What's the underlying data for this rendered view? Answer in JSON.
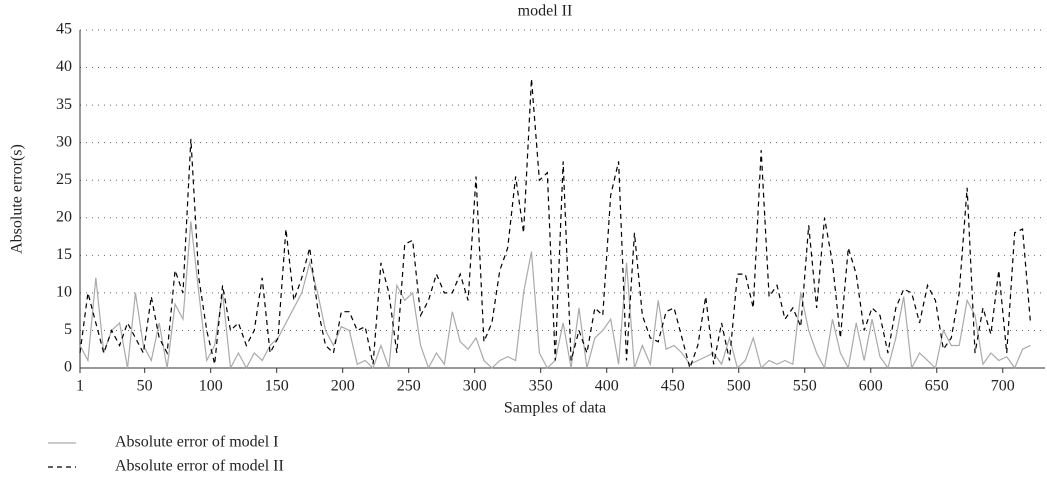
{
  "chart_data": {
    "type": "line",
    "title": "model II",
    "xlabel": "Samples of data",
    "ylabel": "Absolute error(s)",
    "x": [
      1,
      7,
      13,
      19,
      25,
      31,
      37,
      43,
      49,
      55,
      61,
      67,
      73,
      79,
      85,
      91,
      97,
      103,
      109,
      115,
      121,
      127,
      133,
      139,
      145,
      151,
      157,
      163,
      169,
      175,
      181,
      187,
      193,
      199,
      205,
      211,
      217,
      223,
      229,
      235,
      241,
      247,
      253,
      259,
      265,
      271,
      277,
      283,
      289,
      295,
      301,
      307,
      313,
      319,
      325,
      331,
      337,
      343,
      349,
      355,
      361,
      367,
      373,
      379,
      385,
      391,
      397,
      403,
      409,
      415,
      421,
      427,
      433,
      439,
      445,
      451,
      457,
      463,
      469,
      475,
      481,
      487,
      493,
      499,
      505,
      511,
      517,
      523,
      529,
      535,
      541,
      547,
      553,
      559,
      565,
      571,
      577,
      583,
      589,
      595,
      601,
      607,
      613,
      619,
      625,
      631,
      637,
      643,
      649,
      655,
      661,
      667,
      673,
      679,
      685,
      691,
      697,
      703,
      709,
      715,
      721
    ],
    "series": [
      {
        "name": "Absolute error of model I",
        "color": "#aaaaaa",
        "line_style": "solid",
        "values": [
          3,
          1,
          12,
          2,
          5,
          6,
          0,
          10,
          3,
          1,
          6,
          0,
          8.5,
          6.5,
          19.5,
          10,
          1,
          3,
          10,
          0,
          2,
          0,
          2,
          1,
          3,
          4,
          6,
          8,
          10,
          14,
          10,
          5,
          3,
          5.5,
          5,
          0.5,
          1,
          0,
          3,
          0,
          11,
          9,
          10,
          3,
          0,
          2,
          0.5,
          7.5,
          3.5,
          2.5,
          4,
          1,
          0,
          1,
          1.5,
          1,
          10,
          15.5,
          2,
          0,
          1,
          6,
          0,
          8,
          0,
          4,
          5,
          6.5,
          0.5,
          14,
          0,
          3,
          0.5,
          9,
          2.5,
          3,
          2,
          0.5,
          1,
          1.5,
          2,
          0.5,
          4,
          0,
          1,
          4,
          0,
          1,
          0.5,
          1,
          0.5,
          10,
          5,
          2,
          0,
          6.5,
          2,
          0,
          6,
          1,
          6.5,
          1.5,
          0,
          4,
          9.5,
          0,
          2,
          1,
          0,
          5,
          3,
          3,
          9,
          7,
          0.5,
          2,
          1,
          1.5,
          0,
          2.5,
          3
        ]
      },
      {
        "name": "Absolute error of model II",
        "color": "#000000",
        "line_style": "dashed",
        "values": [
          2,
          10,
          6,
          2,
          5,
          3,
          6,
          4,
          2,
          9.5,
          4,
          2,
          13,
          10,
          30.5,
          12,
          5,
          0.5,
          11,
          5,
          6,
          3,
          5,
          12,
          2,
          4,
          18.5,
          9,
          12,
          16,
          8,
          3,
          2,
          7.5,
          7.5,
          5,
          5.5,
          0.5,
          14,
          10,
          2,
          16.5,
          17,
          7,
          9,
          12.5,
          10,
          10,
          12.5,
          9,
          25.5,
          3.5,
          6,
          13,
          16,
          25.5,
          18,
          38.5,
          25,
          26,
          1,
          27.5,
          1,
          5,
          2,
          8,
          7,
          23,
          27.5,
          1,
          18,
          7,
          4,
          3.5,
          7.5,
          8,
          4,
          0,
          3,
          9.5,
          0.5,
          6,
          1,
          12.5,
          12.5,
          8,
          29,
          9.5,
          11,
          6.5,
          8,
          5.5,
          19,
          8,
          20,
          14,
          4,
          16,
          12.5,
          5,
          8,
          7,
          2,
          8,
          10.5,
          10,
          6,
          11,
          9,
          2.5,
          4,
          10,
          24,
          2,
          8,
          4.5,
          13,
          2,
          18,
          18.5,
          6
        ]
      }
    ],
    "xlim": [
      1,
      732
    ],
    "xticks": [
      1,
      50,
      100,
      150,
      200,
      250,
      300,
      350,
      400,
      450,
      500,
      550,
      600,
      650,
      700
    ],
    "ylim": [
      0,
      45
    ],
    "yticks": [
      0,
      5,
      10,
      15,
      20,
      25,
      30,
      35,
      40,
      45
    ],
    "grid": true,
    "legend": "bottom-left"
  }
}
